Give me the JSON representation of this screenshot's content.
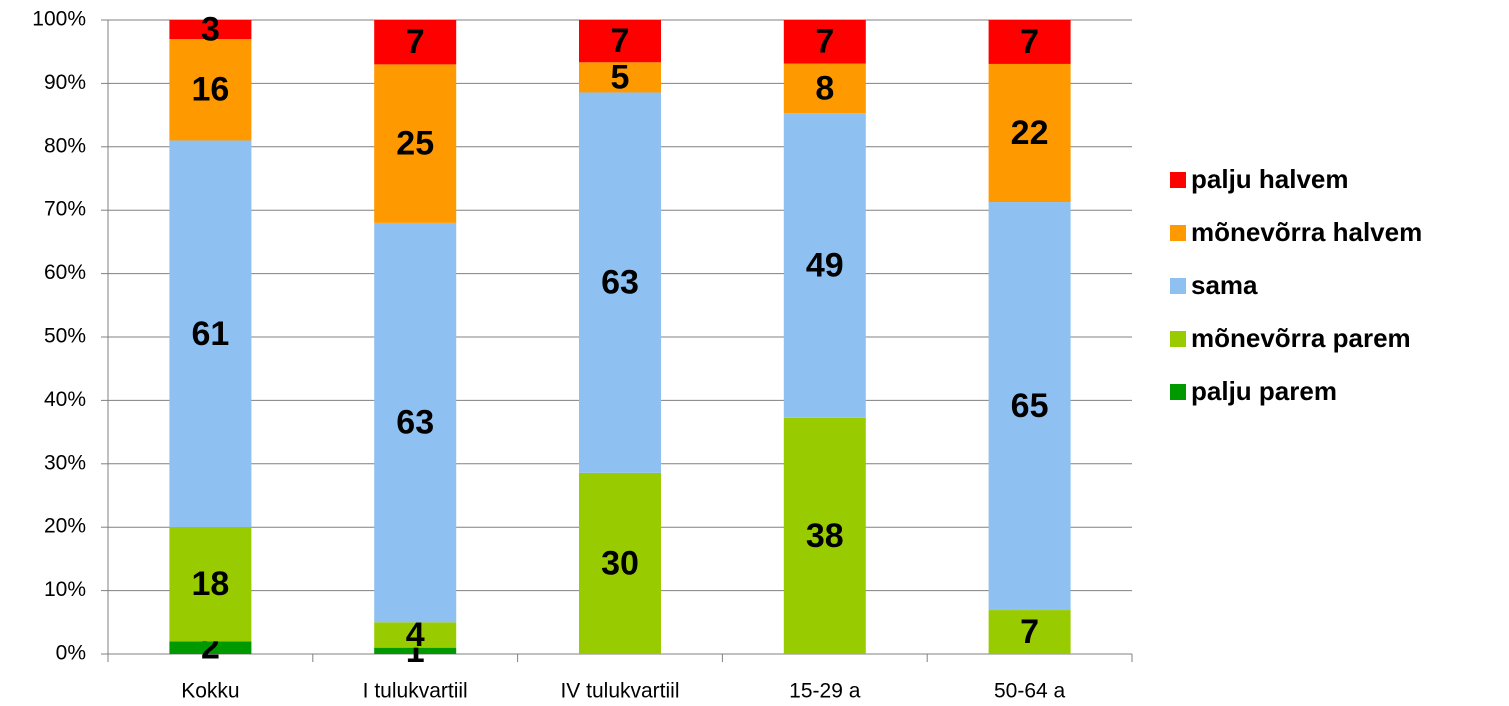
{
  "chart_data": {
    "type": "bar",
    "stack": "percent",
    "categories": [
      "Kokku",
      "I tulukvartiil",
      "IV tulukvartiil",
      "15-29 a",
      "50-64 a"
    ],
    "series": [
      {
        "name": "palju parem",
        "color": "#009900",
        "values": [
          2,
          1,
          null,
          null,
          null
        ]
      },
      {
        "name": "mõnevõrra parem",
        "color": "#99cc00",
        "values": [
          18,
          4,
          30,
          38,
          7
        ]
      },
      {
        "name": "sama",
        "color": "#8ec1f2",
        "values": [
          61,
          63,
          63,
          49,
          65
        ]
      },
      {
        "name": "mõnevõrra halvem",
        "color": "#ff9900",
        "values": [
          16,
          25,
          5,
          8,
          22
        ]
      },
      {
        "name": "palju halvem",
        "color": "#ff0000",
        "values": [
          3,
          7,
          7,
          7,
          7
        ]
      }
    ],
    "ylim": [
      0,
      100
    ],
    "yticks": [
      {
        "value": 0,
        "label": "0%"
      },
      {
        "value": 10,
        "label": "10%"
      },
      {
        "value": 20,
        "label": "20%"
      },
      {
        "value": 30,
        "label": "30%"
      },
      {
        "value": 40,
        "label": "40%"
      },
      {
        "value": 50,
        "label": "50%"
      },
      {
        "value": 60,
        "label": "60%"
      },
      {
        "value": 70,
        "label": "70%"
      },
      {
        "value": 80,
        "label": "80%"
      },
      {
        "value": 90,
        "label": "90%"
      },
      {
        "value": 100,
        "label": "100%"
      }
    ],
    "grid": true,
    "legend": "right"
  }
}
